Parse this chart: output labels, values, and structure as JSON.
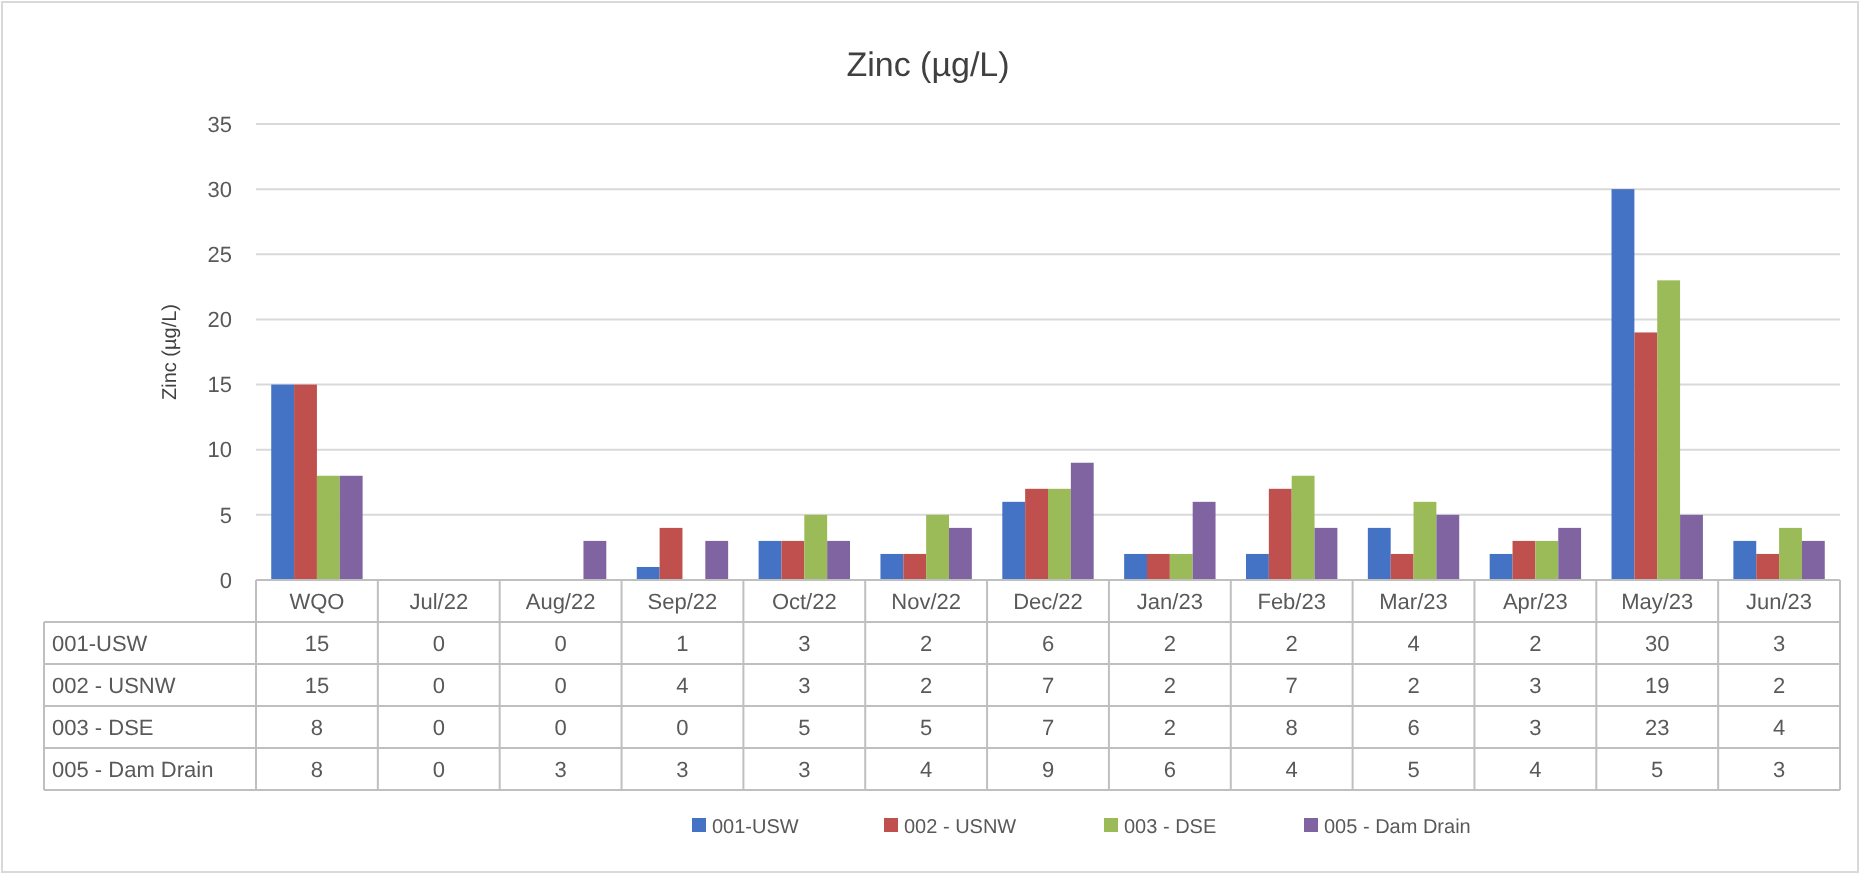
{
  "chart_data": {
    "type": "bar",
    "title": "Zinc (µg/L)",
    "ylabel": "Zinc (µg/L)",
    "categories": [
      "WQO",
      "Jul/22",
      "Aug/22",
      "Sep/22",
      "Oct/22",
      "Nov/22",
      "Dec/22",
      "Jan/23",
      "Feb/23",
      "Mar/23",
      "Apr/23",
      "May/23",
      "Jun/23"
    ],
    "series": [
      {
        "name": "001-USW",
        "color": "#4472c4",
        "values": [
          15,
          0,
          0,
          1,
          3,
          2,
          6,
          2,
          2,
          4,
          2,
          30,
          3
        ]
      },
      {
        "name": "002 - USNW",
        "color": "#c0504d",
        "values": [
          15,
          0,
          0,
          4,
          3,
          2,
          7,
          2,
          7,
          2,
          3,
          19,
          2
        ]
      },
      {
        "name": "003 - DSE",
        "color": "#9bbb59",
        "values": [
          8,
          0,
          0,
          0,
          5,
          5,
          7,
          2,
          8,
          6,
          3,
          23,
          4
        ]
      },
      {
        "name": "005 - Dam Drain",
        "color": "#8064a2",
        "values": [
          8,
          0,
          3,
          3,
          3,
          4,
          9,
          6,
          4,
          5,
          4,
          5,
          3
        ]
      }
    ],
    "ylim": [
      0,
      35
    ],
    "yticks": [
      0,
      5,
      10,
      15,
      20,
      25,
      30,
      35
    ],
    "grid": "y",
    "legend": "bottom",
    "data_labels": true
  }
}
